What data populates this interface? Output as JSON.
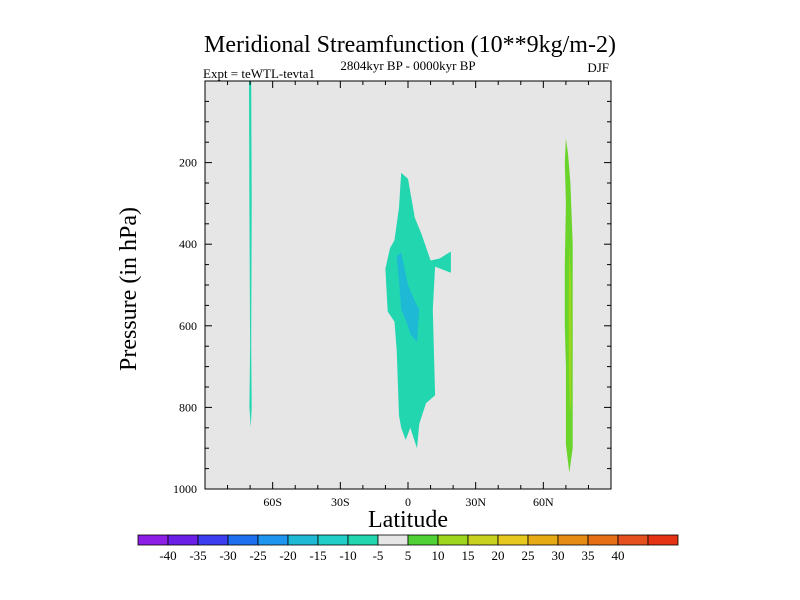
{
  "chart_data": {
    "type": "contour",
    "title": "Meridional Streamfunction (10**9kg/m-2)",
    "subtitle_left": "Expt = teWTL-tevta1",
    "subtitle_center": "2804kyr BP - 0000kyr BP",
    "subtitle_right": "DJF",
    "xlabel": "Latitude",
    "ylabel": "Pressure (in hPa)",
    "xlim": [
      -90,
      90
    ],
    "ylim": [
      1000,
      0
    ],
    "x_ticks": [
      {
        "value": -60,
        "label": "60S"
      },
      {
        "value": -30,
        "label": "30S"
      },
      {
        "value": 0,
        "label": "0"
      },
      {
        "value": 30,
        "label": "30N"
      },
      {
        "value": 60,
        "label": "60N"
      }
    ],
    "y_ticks": [
      {
        "value": 200,
        "label": "200"
      },
      {
        "value": 400,
        "label": "400"
      },
      {
        "value": 600,
        "label": "600"
      },
      {
        "value": 800,
        "label": "800"
      },
      {
        "value": 1000,
        "label": "1000"
      }
    ],
    "background_color": "#e6e6e6",
    "regions": [
      {
        "name": "southern-strip",
        "fill": "#22d6b0",
        "points": [
          [
            -70.5,
            0
          ],
          [
            -69.5,
            0
          ],
          [
            -69.3,
            300
          ],
          [
            -69.5,
            650
          ],
          [
            -69.3,
            800
          ],
          [
            -69.7,
            850
          ],
          [
            -70.3,
            800
          ],
          [
            -70.0,
            650
          ],
          [
            -70.3,
            300
          ]
        ]
      },
      {
        "name": "equatorial-cell",
        "fill": "#22d6b0",
        "points": [
          [
            -3,
            225
          ],
          [
            0,
            240
          ],
          [
            3,
            335
          ],
          [
            6,
            375
          ],
          [
            10,
            440
          ],
          [
            14,
            435
          ],
          [
            19,
            418
          ],
          [
            19,
            470
          ],
          [
            12,
            455
          ],
          [
            11,
            560
          ],
          [
            12,
            770
          ],
          [
            8,
            790
          ],
          [
            5,
            840
          ],
          [
            4,
            900
          ],
          [
            1,
            850
          ],
          [
            -1,
            880
          ],
          [
            -3,
            850
          ],
          [
            -4,
            820
          ],
          [
            -5,
            660
          ],
          [
            -6,
            590
          ],
          [
            -9,
            565
          ],
          [
            -10,
            460
          ],
          [
            -8,
            410
          ],
          [
            -6,
            390
          ],
          [
            -4,
            310
          ]
        ]
      },
      {
        "name": "equatorial-core",
        "fill": "#1eb9d4",
        "points": [
          [
            -5,
            430
          ],
          [
            -3,
            420
          ],
          [
            0,
            500
          ],
          [
            3,
            540
          ],
          [
            5,
            560
          ],
          [
            4,
            640
          ],
          [
            1,
            620
          ],
          [
            0,
            600
          ],
          [
            -3,
            560
          ],
          [
            -4,
            490
          ]
        ]
      },
      {
        "name": "northern-band",
        "fill": "#6ad42a",
        "points": [
          [
            70,
            140
          ],
          [
            71,
            180
          ],
          [
            72,
            250
          ],
          [
            73,
            400
          ],
          [
            73,
            600
          ],
          [
            73,
            800
          ],
          [
            73,
            900
          ],
          [
            71.5,
            960
          ],
          [
            70,
            890
          ],
          [
            70,
            700
          ],
          [
            69.5,
            600
          ],
          [
            69.5,
            450
          ],
          [
            70,
            300
          ],
          [
            69.5,
            200
          ]
        ]
      },
      {
        "name": "northern-core",
        "fill": "#9ed61e",
        "points": [
          [
            71.5,
            400
          ],
          [
            72.3,
            500
          ],
          [
            72.5,
            650
          ],
          [
            72.3,
            780
          ],
          [
            71.8,
            820
          ],
          [
            71.3,
            700
          ],
          [
            71.2,
            550
          ]
        ]
      }
    ],
    "colorbar": {
      "colors": [
        "#8c1ee6",
        "#6a1ee6",
        "#3c3cf0",
        "#1e6ef0",
        "#1e96f0",
        "#1eb9d4",
        "#22cfc8",
        "#22d6b0",
        "#e6e6e6",
        "#50d236",
        "#9ed61e",
        "#c8d21e",
        "#e6c81e",
        "#e6aa14",
        "#e68c14",
        "#e66e14",
        "#e6501e",
        "#e63214"
      ],
      "labels": [
        "-40",
        "-35",
        "-30",
        "-25",
        "-20",
        "-15",
        "-10",
        "-5",
        "5",
        "10",
        "15",
        "20",
        "25",
        "30",
        "35",
        "40"
      ]
    }
  }
}
